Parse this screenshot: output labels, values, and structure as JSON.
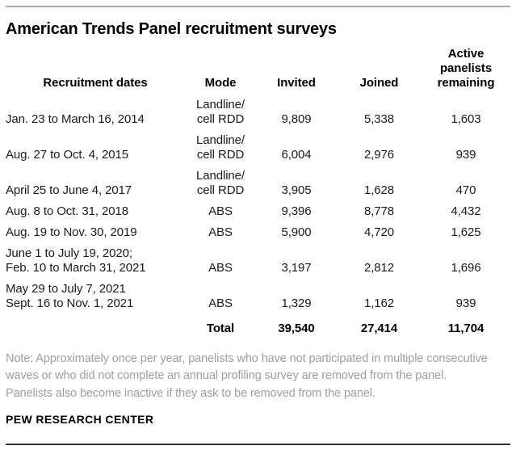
{
  "title": "American Trends Panel recruitment surveys",
  "table": {
    "headers": {
      "dates": "Recruitment dates",
      "mode": "Mode",
      "invited": "Invited",
      "joined": "Joined",
      "remaining": "Active\npanelists\nremaining"
    },
    "rows": [
      {
        "dates": "Jan. 23 to March 16, 2014",
        "mode": "Landline/\ncell RDD",
        "invited": "9,809",
        "joined": "5,338",
        "remaining": "1,603"
      },
      {
        "dates": "Aug. 27 to Oct. 4, 2015",
        "mode": "Landline/\ncell RDD",
        "invited": "6,004",
        "joined": "2,976",
        "remaining": "939"
      },
      {
        "dates": "April 25 to June 4, 2017",
        "mode": "Landline/\ncell RDD",
        "invited": "3,905",
        "joined": "1,628",
        "remaining": "470"
      },
      {
        "dates": "Aug. 8 to Oct. 31, 2018",
        "mode": "ABS",
        "invited": "9,396",
        "joined": "8,778",
        "remaining": "4,432"
      },
      {
        "dates": "Aug. 19 to Nov. 30, 2019",
        "mode": "ABS",
        "invited": "5,900",
        "joined": "4,720",
        "remaining": "1,625"
      },
      {
        "dates": "June 1 to July 19, 2020;\nFeb. 10 to March 31, 2021",
        "mode": "ABS",
        "invited": "3,197",
        "joined": "2,812",
        "remaining": "1,696"
      },
      {
        "dates": "May 29 to July 7, 2021\nSept. 16 to Nov. 1, 2021",
        "mode": "ABS",
        "invited": "1,329",
        "joined": "1,162",
        "remaining": "939"
      }
    ],
    "total": {
      "label": "Total",
      "invited": "39,540",
      "joined": "27,414",
      "remaining": "11,704"
    }
  },
  "note": "Note: Approximately once per year, panelists who have not participated in multiple consecutive waves or who did not complete an annual profiling survey are removed from the panel. Panelists also become inactive if they ask to be removed from the panel.",
  "source": "PEW RESEARCH CENTER",
  "colors": {
    "top_rule": "#a8a8a8",
    "bottom_rule": "#303030",
    "note_text": "#9e9e9e",
    "body_text": "#1a1a1a"
  },
  "chart_data": {
    "type": "table",
    "title": "American Trends Panel recruitment surveys",
    "columns": [
      "Recruitment dates",
      "Mode",
      "Invited",
      "Joined",
      "Active panelists remaining"
    ],
    "rows": [
      {
        "recruitment_dates": "Jan. 23 to March 16, 2014",
        "mode": "Landline/cell RDD",
        "invited": 9809,
        "joined": 5338,
        "active_panelists_remaining": 1603
      },
      {
        "recruitment_dates": "Aug. 27 to Oct. 4, 2015",
        "mode": "Landline/cell RDD",
        "invited": 6004,
        "joined": 2976,
        "active_panelists_remaining": 939
      },
      {
        "recruitment_dates": "April 25 to June 4, 2017",
        "mode": "Landline/cell RDD",
        "invited": 3905,
        "joined": 1628,
        "active_panelists_remaining": 470
      },
      {
        "recruitment_dates": "Aug. 8 to Oct. 31, 2018",
        "mode": "ABS",
        "invited": 9396,
        "joined": 8778,
        "active_panelists_remaining": 4432
      },
      {
        "recruitment_dates": "Aug. 19 to Nov. 30, 2019",
        "mode": "ABS",
        "invited": 5900,
        "joined": 4720,
        "active_panelists_remaining": 1625
      },
      {
        "recruitment_dates": "June 1 to July 19, 2020; Feb. 10 to March 31, 2021",
        "mode": "ABS",
        "invited": 3197,
        "joined": 2812,
        "active_panelists_remaining": 1696
      },
      {
        "recruitment_dates": "May 29 to July 7, 2021 / Sept. 16 to Nov. 1, 2021",
        "mode": "ABS",
        "invited": 1329,
        "joined": 1162,
        "active_panelists_remaining": 939
      }
    ],
    "total": {
      "invited": 39540,
      "joined": 27414,
      "active_panelists_remaining": 11704
    },
    "note": "Note: Approximately once per year, panelists who have not participated in multiple consecutive waves or who did not complete an annual profiling survey are removed from the panel. Panelists also become inactive if they ask to be removed from the panel.",
    "source": "PEW RESEARCH CENTER"
  }
}
